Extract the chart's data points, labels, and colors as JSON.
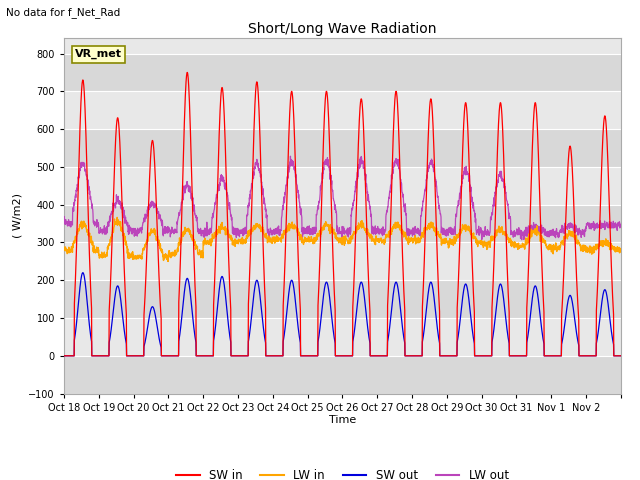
{
  "title": "Short/Long Wave Radiation",
  "no_data_text": "No data for f_Net_Rad",
  "vr_met_label": "VR_met",
  "ylabel": "( W/m2)",
  "xlabel": "Time",
  "ylim": [
    -100,
    840
  ],
  "yticks": [
    -100,
    0,
    100,
    200,
    300,
    400,
    500,
    600,
    700,
    800
  ],
  "bg_color": "#e8e8e8",
  "fig_color": "#ffffff",
  "n_days": 16,
  "day_labels": [
    "Oct 18",
    "Oct 19",
    "Oct 20",
    "Oct 21",
    "Oct 22",
    "Oct 23",
    "Oct 24",
    "Oct 25",
    "Oct 26",
    "Oct 27",
    "Oct 28",
    "Oct 29",
    "Oct 30",
    "Oct 31",
    "Nov 1",
    "Nov 2"
  ],
  "sw_in_peaks": [
    730,
    630,
    570,
    750,
    710,
    725,
    700,
    700,
    680,
    700,
    680,
    670,
    670,
    670,
    555,
    635
  ],
  "sw_out_peaks": [
    220,
    185,
    130,
    205,
    210,
    200,
    200,
    195,
    195,
    195,
    195,
    190,
    190,
    185,
    160,
    175
  ],
  "lw_in_night": [
    280,
    265,
    260,
    270,
    300,
    305,
    305,
    305,
    305,
    305,
    305,
    300,
    295,
    290,
    285,
    280
  ],
  "lw_in_day_add": [
    70,
    90,
    70,
    65,
    40,
    40,
    40,
    40,
    40,
    40,
    40,
    40,
    40,
    40,
    40,
    20
  ],
  "lw_out_night": [
    350,
    330,
    330,
    330,
    330,
    330,
    330,
    330,
    330,
    330,
    330,
    330,
    325,
    325,
    325,
    345
  ],
  "lw_out_day_peaks": [
    510,
    410,
    405,
    450,
    470,
    510,
    515,
    515,
    515,
    515,
    515,
    490,
    480,
    340,
    345,
    345
  ],
  "colors": {
    "sw_in": "#ff0000",
    "lw_in": "#ffa500",
    "sw_out": "#0000dd",
    "lw_out": "#bb44bb"
  },
  "legend_labels": [
    "SW in",
    "LW in",
    "SW out",
    "LW out"
  ]
}
